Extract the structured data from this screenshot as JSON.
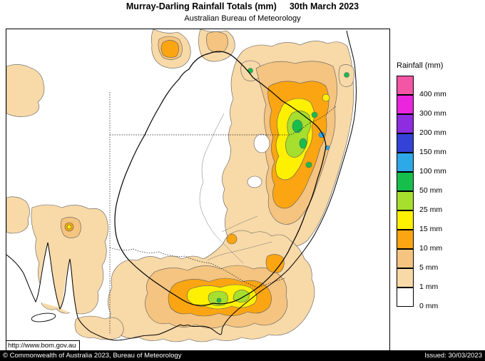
{
  "header": {
    "title": "Murray-Darling Rainfall Totals (mm)",
    "date": "30th March 2023",
    "subtitle": "Australian Bureau of Meteorology"
  },
  "legend": {
    "title": "Rainfall (mm)",
    "entries": [
      {
        "key": "400",
        "label": "400 mm",
        "color": "#f356a4"
      },
      {
        "key": "300",
        "label": "300 mm",
        "color": "#ea25dd"
      },
      {
        "key": "200",
        "label": "200 mm",
        "color": "#8e2ce0"
      },
      {
        "key": "150",
        "label": "150 mm",
        "color": "#3442d8"
      },
      {
        "key": "100",
        "label": "100 mm",
        "color": "#2da9e8"
      },
      {
        "key": "50",
        "label": "50 mm",
        "color": "#16bf4c"
      },
      {
        "key": "25",
        "label": "25 mm",
        "color": "#a6df2e"
      },
      {
        "key": "15",
        "label": "15 mm",
        "color": "#fdf000"
      },
      {
        "key": "10",
        "label": "10 mm",
        "color": "#fba513"
      },
      {
        "key": "5",
        "label": "5 mm",
        "color": "#f4c480"
      },
      {
        "key": "1",
        "label": "1 mm",
        "color": "#f8d9a8"
      },
      {
        "key": "0",
        "label": "0 mm",
        "color": "#ffffff"
      }
    ]
  },
  "map": {
    "url_label": "http://www.bom.gov.au"
  },
  "footer": {
    "copyright": "© Commonwealth of Australia 2023, Bureau of Meteorology",
    "issued": "Issued: 30/03/2023"
  }
}
